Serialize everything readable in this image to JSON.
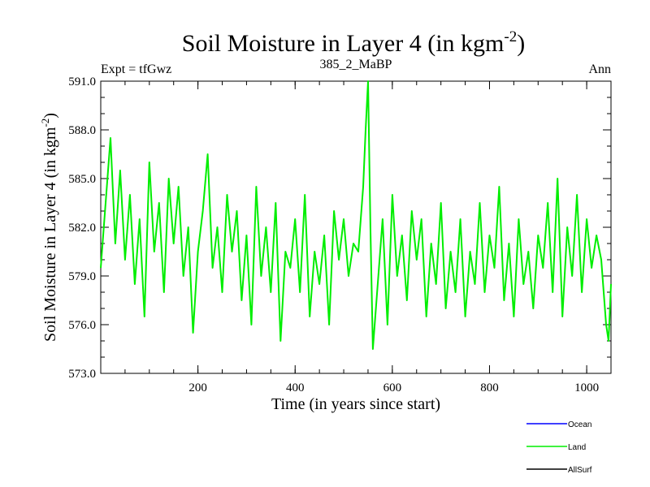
{
  "chart_data": {
    "type": "line",
    "title": "Soil Moisture in Layer 4 (in kgm",
    "title_sup": "-2",
    "title_close": ")",
    "subtitle_left": "Expt = tfGwz",
    "subtitle_center": "385_2_MaBP",
    "subtitle_right": "Ann",
    "xlabel": "Time (in years since start)",
    "ylabel": "Soil Moisture in Layer 4 (in kgm",
    "ylabel_sup": "-2",
    "ylabel_close": ")",
    "xlim": [
      0,
      1050
    ],
    "ylim": [
      573.0,
      591.0
    ],
    "xticks": [
      200,
      400,
      600,
      800,
      1000
    ],
    "xtick_labels": [
      "200",
      "400",
      "600",
      "800",
      "1000"
    ],
    "yticks": [
      573.0,
      576.0,
      579.0,
      582.0,
      585.0,
      588.0,
      591.0
    ],
    "ytick_labels": [
      "573.0",
      "576.0",
      "579.0",
      "582.0",
      "585.0",
      "588.0",
      "591.0"
    ],
    "legend": [
      {
        "name": "Ocean",
        "color": "#0000ff"
      },
      {
        "name": "Land",
        "color": "#00ee00"
      },
      {
        "name": "AllSurf",
        "color": "#000000"
      }
    ],
    "series": [
      {
        "name": "Land",
        "color": "#00ee00",
        "x": [
          0,
          10,
          20,
          30,
          40,
          50,
          60,
          70,
          80,
          90,
          100,
          110,
          120,
          130,
          140,
          150,
          160,
          170,
          180,
          190,
          200,
          210,
          220,
          230,
          240,
          250,
          260,
          270,
          280,
          290,
          300,
          310,
          320,
          330,
          340,
          350,
          360,
          370,
          380,
          390,
          400,
          410,
          420,
          430,
          440,
          450,
          460,
          470,
          480,
          490,
          500,
          510,
          520,
          530,
          540,
          545,
          550,
          555,
          560,
          570,
          580,
          590,
          600,
          610,
          620,
          630,
          640,
          650,
          660,
          670,
          680,
          690,
          700,
          710,
          720,
          730,
          740,
          750,
          760,
          770,
          780,
          790,
          800,
          810,
          820,
          830,
          840,
          850,
          860,
          870,
          880,
          890,
          900,
          910,
          920,
          930,
          940,
          950,
          960,
          970,
          980,
          990,
          1000,
          1010,
          1020,
          1030,
          1040,
          1045,
          1050
        ],
        "values": [
          579.5,
          583.5,
          587.5,
          581.0,
          585.5,
          580.0,
          584.0,
          578.5,
          582.5,
          576.5,
          586.0,
          580.5,
          583.5,
          578.0,
          585.0,
          581.0,
          584.5,
          579.0,
          582.0,
          575.5,
          580.5,
          583.0,
          586.5,
          579.5,
          582.0,
          578.0,
          584.0,
          580.5,
          583.0,
          577.5,
          581.5,
          576.0,
          584.5,
          579.0,
          582.0,
          578.0,
          583.5,
          575.0,
          580.5,
          579.5,
          582.5,
          578.0,
          584.0,
          576.5,
          580.5,
          578.5,
          581.5,
          576.0,
          583.0,
          580.0,
          582.5,
          579.0,
          581.0,
          580.5,
          584.5,
          588.0,
          591.0,
          582.0,
          574.5,
          578.5,
          582.5,
          576.0,
          584.0,
          579.0,
          581.5,
          577.5,
          583.0,
          580.0,
          582.5,
          576.5,
          581.0,
          578.5,
          583.5,
          577.0,
          580.5,
          578.0,
          582.5,
          576.5,
          580.5,
          578.5,
          583.5,
          578.0,
          581.5,
          579.5,
          584.5,
          577.5,
          581.0,
          576.5,
          582.5,
          578.5,
          580.5,
          577.0,
          581.5,
          579.5,
          583.5,
          578.0,
          585.0,
          576.5,
          582.0,
          579.0,
          584.0,
          578.0,
          582.5,
          579.5,
          581.5,
          580.0,
          576.0,
          575.0,
          578.5
        ]
      }
    ]
  }
}
